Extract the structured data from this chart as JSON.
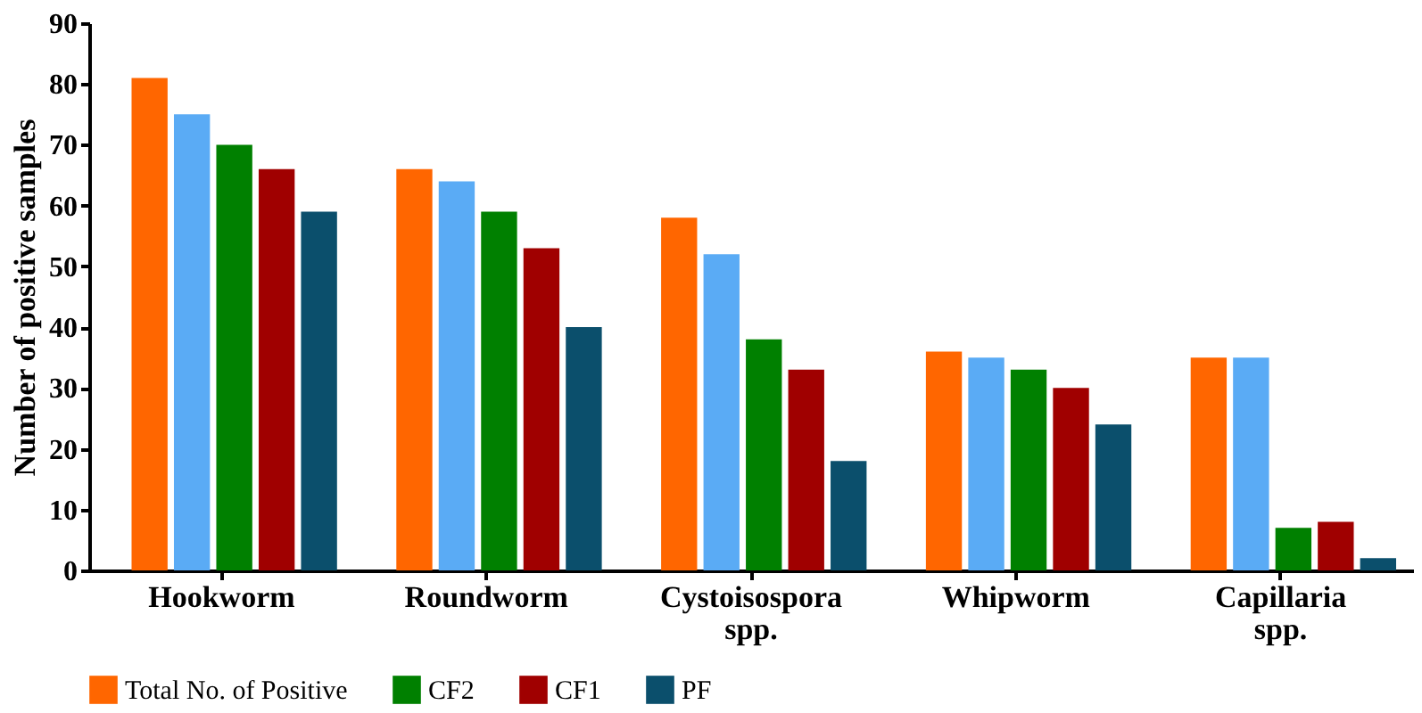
{
  "chart_data": {
    "type": "bar",
    "ylabel": "Number of positive samples",
    "categories": [
      "Hookworm",
      "Roundworm",
      "Cystoisospora spp.",
      "Whipworm",
      "Capillaria spp."
    ],
    "series": [
      {
        "name": "Total No. of Positive",
        "color": "#ff6600",
        "values": [
          81,
          66,
          58,
          36,
          35
        ]
      },
      {
        "color": "#5aabf5",
        "values": [
          75,
          64,
          52,
          35,
          35
        ]
      },
      {
        "name": "CF2",
        "color": "#008000",
        "values": [
          70,
          59,
          38,
          33,
          7
        ]
      },
      {
        "name": "CF1",
        "color": "#a00000",
        "values": [
          66,
          53,
          33,
          30,
          8
        ]
      },
      {
        "name": "PF",
        "color": "#0b4f6c",
        "values": [
          59,
          40,
          18,
          24,
          2
        ]
      }
    ],
    "ylim": [
      0,
      90
    ],
    "yticks": [
      0,
      10,
      20,
      30,
      40,
      50,
      60,
      70,
      80,
      90
    ],
    "grid": false,
    "legend": "bottom"
  }
}
